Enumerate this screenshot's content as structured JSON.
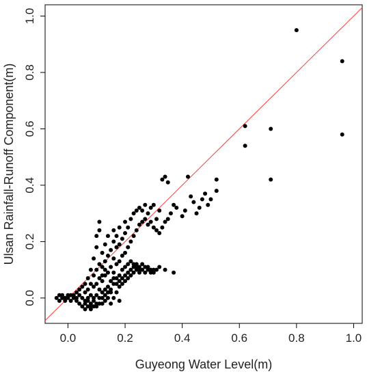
{
  "chart_data": {
    "type": "scatter",
    "title": "",
    "xlabel": "Guyeong Water Level(m)",
    "ylabel": "Ulsan Rainfall-Runoff Component(m)",
    "xlim": [
      -0.08,
      1.03
    ],
    "ylim": [
      -0.09,
      1.04
    ],
    "x_ticks": [
      0.0,
      0.2,
      0.4,
      0.6,
      0.8,
      1.0
    ],
    "x_tick_labels": [
      "0.0",
      "0.2",
      "0.4",
      "0.6",
      "0.8",
      "1.0"
    ],
    "y_ticks": [
      0.0,
      0.2,
      0.4,
      0.6,
      0.8,
      1.0
    ],
    "y_tick_labels": [
      "0.0",
      "0.2",
      "0.4",
      "0.6",
      "0.8",
      "1.0"
    ],
    "grid": false,
    "reference_line": {
      "kind": "y=x",
      "color": "#ff3b3b"
    },
    "marker_color": "#000000",
    "points": [
      [
        -0.04,
        0.0
      ],
      [
        -0.03,
        0.01
      ],
      [
        -0.03,
        -0.01
      ],
      [
        -0.02,
        0.0
      ],
      [
        -0.02,
        0.01
      ],
      [
        -0.01,
        0.0
      ],
      [
        -0.01,
        -0.01
      ],
      [
        0.0,
        0.01
      ],
      [
        0.0,
        0.0
      ],
      [
        0.01,
        -0.01
      ],
      [
        0.01,
        0.01
      ],
      [
        0.02,
        0.0
      ],
      [
        0.02,
        0.01
      ],
      [
        0.03,
        -0.01
      ],
      [
        0.03,
        0.0
      ],
      [
        0.03,
        0.02
      ],
      [
        0.04,
        -0.02
      ],
      [
        0.04,
        0.01
      ],
      [
        0.04,
        0.03
      ],
      [
        0.05,
        -0.03
      ],
      [
        0.05,
        0.0
      ],
      [
        0.05,
        0.04
      ],
      [
        0.06,
        -0.04
      ],
      [
        0.06,
        -0.01
      ],
      [
        0.06,
        0.02
      ],
      [
        0.06,
        0.05
      ],
      [
        0.07,
        -0.03
      ],
      [
        0.07,
        0.0
      ],
      [
        0.07,
        0.03
      ],
      [
        0.07,
        0.07
      ],
      [
        0.08,
        -0.04
      ],
      [
        0.08,
        -0.02
      ],
      [
        0.08,
        0.01
      ],
      [
        0.08,
        0.05
      ],
      [
        0.08,
        0.1
      ],
      [
        0.09,
        -0.03
      ],
      [
        0.09,
        0.0
      ],
      [
        0.09,
        0.04
      ],
      [
        0.09,
        0.08
      ],
      [
        0.09,
        0.14
      ],
      [
        0.1,
        -0.03
      ],
      [
        0.1,
        0.01
      ],
      [
        0.1,
        0.05
      ],
      [
        0.1,
        0.1
      ],
      [
        0.1,
        0.18
      ],
      [
        0.1,
        0.22
      ],
      [
        0.11,
        -0.02
      ],
      [
        0.11,
        0.03
      ],
      [
        0.11,
        0.07
      ],
      [
        0.11,
        0.12
      ],
      [
        0.11,
        0.24
      ],
      [
        0.11,
        0.27
      ],
      [
        0.12,
        -0.02
      ],
      [
        0.12,
        0.02
      ],
      [
        0.12,
        0.06
      ],
      [
        0.12,
        0.11
      ],
      [
        0.12,
        0.16
      ],
      [
        0.13,
        -0.01
      ],
      [
        0.13,
        0.03
      ],
      [
        0.13,
        0.08
      ],
      [
        0.13,
        0.13
      ],
      [
        0.13,
        0.19
      ],
      [
        0.14,
        0.0
      ],
      [
        0.14,
        0.04
      ],
      [
        0.14,
        0.09
      ],
      [
        0.14,
        0.15
      ],
      [
        0.14,
        0.22
      ],
      [
        0.15,
        -0.02
      ],
      [
        0.15,
        0.02
      ],
      [
        0.15,
        0.06
      ],
      [
        0.15,
        0.11
      ],
      [
        0.15,
        0.17
      ],
      [
        0.16,
        0.0
      ],
      [
        0.16,
        0.05
      ],
      [
        0.16,
        0.09
      ],
      [
        0.16,
        0.14
      ],
      [
        0.16,
        0.2
      ],
      [
        0.16,
        0.24
      ],
      [
        0.17,
        0.02
      ],
      [
        0.17,
        0.07
      ],
      [
        0.17,
        0.12
      ],
      [
        0.17,
        0.18
      ],
      [
        0.17,
        0.22
      ],
      [
        0.18,
        -0.01
      ],
      [
        0.18,
        0.04
      ],
      [
        0.18,
        0.08
      ],
      [
        0.18,
        0.13
      ],
      [
        0.18,
        0.19
      ],
      [
        0.18,
        0.25
      ],
      [
        0.19,
        0.05
      ],
      [
        0.19,
        0.1
      ],
      [
        0.19,
        0.15
      ],
      [
        0.19,
        0.21
      ],
      [
        0.2,
        0.06
      ],
      [
        0.2,
        0.11
      ],
      [
        0.2,
        0.16
      ],
      [
        0.2,
        0.23
      ],
      [
        0.2,
        0.27
      ],
      [
        0.21,
        0.07
      ],
      [
        0.21,
        0.12
      ],
      [
        0.21,
        0.18
      ],
      [
        0.21,
        0.25
      ],
      [
        0.22,
        0.08
      ],
      [
        0.22,
        0.13
      ],
      [
        0.22,
        0.2
      ],
      [
        0.22,
        0.28
      ],
      [
        0.23,
        0.09
      ],
      [
        0.23,
        0.12
      ],
      [
        0.23,
        0.22
      ],
      [
        0.23,
        0.3
      ],
      [
        0.24,
        0.1
      ],
      [
        0.24,
        0.12
      ],
      [
        0.24,
        0.24
      ],
      [
        0.24,
        0.31
      ],
      [
        0.25,
        0.09
      ],
      [
        0.25,
        0.11
      ],
      [
        0.25,
        0.26
      ],
      [
        0.25,
        0.32
      ],
      [
        0.26,
        0.1
      ],
      [
        0.26,
        0.27
      ],
      [
        0.26,
        0.31
      ],
      [
        0.27,
        0.09
      ],
      [
        0.27,
        0.28
      ],
      [
        0.27,
        0.33
      ],
      [
        0.28,
        0.1
      ],
      [
        0.28,
        0.26
      ],
      [
        0.28,
        0.3
      ],
      [
        0.29,
        0.09
      ],
      [
        0.29,
        0.27
      ],
      [
        0.29,
        0.32
      ],
      [
        0.3,
        0.1
      ],
      [
        0.3,
        0.25
      ],
      [
        0.3,
        0.33
      ],
      [
        0.31,
        0.24
      ],
      [
        0.31,
        0.28
      ],
      [
        0.32,
        0.23
      ],
      [
        0.32,
        0.31
      ],
      [
        0.33,
        0.25
      ],
      [
        0.33,
        0.42
      ],
      [
        0.34,
        0.27
      ],
      [
        0.34,
        0.43
      ],
      [
        0.35,
        0.28
      ],
      [
        0.35,
        0.41
      ],
      [
        0.36,
        0.3
      ],
      [
        0.37,
        0.09
      ],
      [
        0.37,
        0.33
      ],
      [
        0.38,
        0.32
      ],
      [
        0.4,
        0.29
      ],
      [
        0.41,
        0.31
      ],
      [
        0.42,
        0.43
      ],
      [
        0.43,
        0.36
      ],
      [
        0.44,
        0.34
      ],
      [
        0.45,
        0.3
      ],
      [
        0.46,
        0.32
      ],
      [
        0.47,
        0.35
      ],
      [
        0.48,
        0.37
      ],
      [
        0.49,
        0.33
      ],
      [
        0.5,
        0.35
      ],
      [
        0.52,
        0.38
      ],
      [
        0.52,
        0.42
      ],
      [
        0.62,
        0.61
      ],
      [
        0.62,
        0.54
      ],
      [
        0.71,
        0.6
      ],
      [
        0.71,
        0.42
      ],
      [
        0.8,
        0.95
      ],
      [
        0.96,
        0.84
      ],
      [
        0.96,
        0.58
      ],
      [
        0.06,
        -0.02
      ],
      [
        0.07,
        -0.01
      ],
      [
        0.08,
        -0.03
      ],
      [
        0.09,
        -0.01
      ],
      [
        0.1,
        -0.02
      ],
      [
        0.11,
        0.0
      ],
      [
        0.12,
        0.0
      ],
      [
        0.13,
        0.01
      ],
      [
        0.14,
        0.02
      ],
      [
        0.15,
        0.03
      ],
      [
        0.16,
        0.07
      ],
      [
        0.17,
        0.05
      ],
      [
        0.18,
        0.06
      ],
      [
        0.19,
        0.07
      ],
      [
        0.2,
        0.08
      ],
      [
        0.21,
        0.09
      ],
      [
        0.22,
        0.1
      ],
      [
        0.23,
        0.11
      ],
      [
        0.24,
        0.11
      ],
      [
        0.25,
        0.1
      ],
      [
        0.26,
        0.12
      ],
      [
        0.27,
        0.11
      ],
      [
        0.28,
        0.11
      ],
      [
        0.29,
        0.1
      ],
      [
        0.3,
        0.09
      ],
      [
        0.31,
        0.1
      ],
      [
        0.32,
        0.11
      ],
      [
        0.34,
        0.1
      ],
      [
        0.12,
        0.08
      ],
      [
        0.13,
        0.1
      ]
    ]
  }
}
